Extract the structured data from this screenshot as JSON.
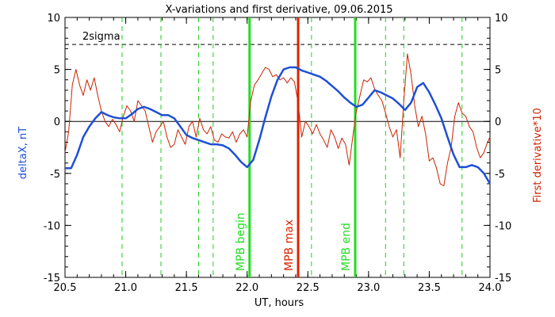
{
  "chart_data": {
    "type": "line",
    "title": "X-variations and first derivative, 09.06.2015",
    "xlabel": "UT, hours",
    "ylabel_left": "deltaX, nT",
    "ylabel_right": "First derivative*10",
    "xlim": [
      20.5,
      24.0
    ],
    "ylim": [
      -15,
      10
    ],
    "x_ticks": [
      "20.5",
      "21.0",
      "21.5",
      "22.0",
      "22.5",
      "23.0",
      "23.5",
      "24.0"
    ],
    "y_ticks_left": [
      "-15",
      "-10",
      "-5",
      "0",
      "5",
      "10"
    ],
    "y_ticks_right": [
      "-15",
      "-10",
      "-5",
      "0",
      "5",
      "10"
    ],
    "sigma_label": "2sigma",
    "sigma_level": 7.4,
    "zero_line": 0,
    "colors": {
      "deltaX": "#1f4fd6",
      "derivative": "#cc2200",
      "mpb_begin": "#22dd22",
      "mpb_max": "#dd2200",
      "mpb_end": "#22dd22",
      "dashed_markers": "#22cc22"
    },
    "markers": {
      "dashed_x": [
        20.97,
        21.29,
        21.6,
        21.72,
        22.53,
        23.14,
        23.29,
        23.77
      ],
      "mpb_begin": {
        "x": 22.02,
        "label": "MPB begin"
      },
      "mpb_max": {
        "x": 22.42,
        "label": "MPB max"
      },
      "mpb_end": {
        "x": 22.89,
        "label": "MPB end"
      }
    },
    "series": [
      {
        "name": "deltaX, nT",
        "color": "#1f4fd6",
        "x": [
          20.5,
          20.55,
          20.6,
          20.65,
          20.7,
          20.75,
          20.8,
          20.85,
          20.9,
          20.95,
          21.0,
          21.05,
          21.1,
          21.15,
          21.2,
          21.25,
          21.3,
          21.35,
          21.4,
          21.45,
          21.5,
          21.55,
          21.6,
          21.65,
          21.7,
          21.75,
          21.8,
          21.85,
          21.9,
          21.95,
          22.0,
          22.05,
          22.1,
          22.15,
          22.2,
          22.25,
          22.3,
          22.35,
          22.4,
          22.45,
          22.5,
          22.55,
          22.6,
          22.65,
          22.7,
          22.75,
          22.8,
          22.85,
          22.9,
          22.95,
          23.0,
          23.05,
          23.1,
          23.15,
          23.2,
          23.25,
          23.3,
          23.35,
          23.4,
          23.45,
          23.5,
          23.55,
          23.6,
          23.65,
          23.7,
          23.75,
          23.8,
          23.85,
          23.9,
          23.95,
          24.0
        ],
        "y": [
          -4.5,
          -4.5,
          -3.2,
          -1.5,
          -0.5,
          0.3,
          0.9,
          0.6,
          0.4,
          0.3,
          0.3,
          0.7,
          1.2,
          1.4,
          1.2,
          0.9,
          0.6,
          0.6,
          0.3,
          -0.5,
          -1.3,
          -1.6,
          -1.8,
          -2.0,
          -2.2,
          -2.2,
          -2.3,
          -2.6,
          -3.2,
          -3.9,
          -4.4,
          -3.7,
          -1.8,
          0.4,
          2.4,
          4.0,
          5.0,
          5.2,
          5.2,
          4.9,
          4.7,
          4.5,
          4.3,
          3.9,
          3.4,
          2.9,
          2.3,
          1.8,
          1.4,
          1.6,
          2.3,
          3.0,
          2.8,
          2.5,
          2.2,
          1.7,
          1.1,
          1.8,
          3.3,
          3.7,
          2.8,
          1.6,
          0.3,
          -1.5,
          -3.2,
          -4.4,
          -4.4,
          -4.2,
          -4.4,
          -5.0,
          -6.0
        ]
      },
      {
        "name": "First derivative*10",
        "color": "#cc2200",
        "x": [
          20.5,
          20.53,
          20.56,
          20.59,
          20.62,
          20.65,
          20.68,
          20.71,
          20.74,
          20.77,
          20.8,
          20.83,
          20.86,
          20.89,
          20.92,
          20.95,
          20.98,
          21.01,
          21.04,
          21.07,
          21.1,
          21.13,
          21.16,
          21.19,
          21.22,
          21.25,
          21.28,
          21.31,
          21.34,
          21.37,
          21.4,
          21.43,
          21.46,
          21.49,
          21.52,
          21.55,
          21.58,
          21.61,
          21.64,
          21.67,
          21.7,
          21.73,
          21.76,
          21.79,
          21.82,
          21.85,
          21.88,
          21.91,
          21.94,
          21.97,
          22.0,
          22.03,
          22.06,
          22.09,
          22.12,
          22.15,
          22.18,
          22.21,
          22.24,
          22.27,
          22.3,
          22.33,
          22.36,
          22.39,
          22.42,
          22.45,
          22.48,
          22.51,
          22.54,
          22.57,
          22.6,
          22.63,
          22.66,
          22.69,
          22.72,
          22.75,
          22.78,
          22.81,
          22.84,
          22.87,
          22.9,
          22.93,
          22.96,
          22.99,
          23.02,
          23.05,
          23.08,
          23.11,
          23.14,
          23.17,
          23.2,
          23.23,
          23.26,
          23.29,
          23.32,
          23.35,
          23.38,
          23.41,
          23.44,
          23.47,
          23.5,
          23.53,
          23.56,
          23.59,
          23.62,
          23.65,
          23.68,
          23.71,
          23.74,
          23.77,
          23.8,
          23.83,
          23.86,
          23.89,
          23.92,
          23.95,
          23.98,
          24.0
        ],
        "y": [
          -3.0,
          -1.0,
          3.5,
          5.0,
          3.5,
          2.5,
          4.0,
          3.0,
          4.2,
          2.5,
          1.0,
          0.0,
          -0.5,
          0.2,
          -0.3,
          -1.0,
          0.5,
          1.5,
          1.0,
          0.0,
          2.0,
          1.5,
          1.0,
          -0.5,
          -2.0,
          -1.0,
          -0.5,
          0.0,
          -1.5,
          -2.5,
          -2.2,
          -0.8,
          -1.5,
          -2.2,
          -0.5,
          0.0,
          -1.5,
          0.3,
          -0.8,
          -1.2,
          -0.5,
          -1.8,
          -2.0,
          -1.2,
          -1.5,
          -1.6,
          -1.0,
          -2.0,
          -1.2,
          -0.8,
          -1.5,
          2.0,
          3.5,
          4.0,
          4.6,
          5.2,
          5.0,
          4.3,
          4.5,
          4.0,
          4.2,
          3.7,
          4.2,
          3.8,
          1.8,
          -1.5,
          0.0,
          -0.5,
          -1.2,
          -0.3,
          -1.2,
          -1.8,
          -2.5,
          -0.8,
          -1.5,
          -2.6,
          -1.6,
          -2.2,
          -4.2,
          -1.5,
          1.0,
          2.5,
          4.0,
          3.8,
          4.2,
          3.1,
          2.5,
          2.0,
          0.8,
          -0.5,
          -1.5,
          -0.8,
          -3.5,
          2.0,
          6.5,
          4.5,
          1.5,
          -0.5,
          0.5,
          -1.2,
          -3.8,
          -3.5,
          -4.5,
          -6.0,
          -6.2,
          -4.0,
          -2.5,
          0.5,
          1.8,
          0.8,
          0.5,
          -0.5,
          -1.0,
          -2.5,
          -3.5,
          -3.0,
          -2.0,
          -1.5
        ]
      }
    ]
  }
}
